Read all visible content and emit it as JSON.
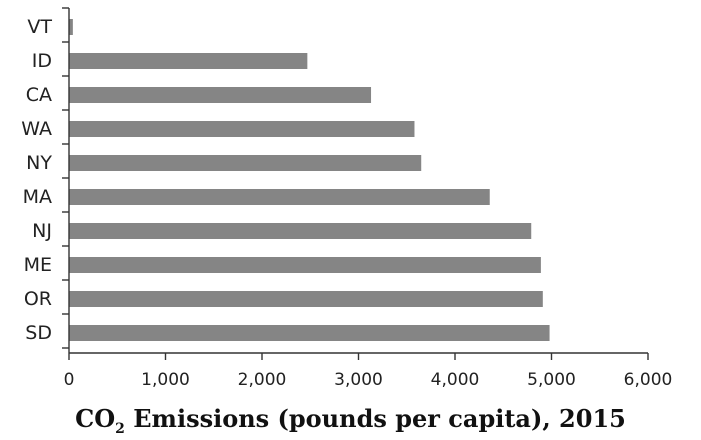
{
  "chart_data": {
    "type": "bar",
    "orientation": "horizontal",
    "categories": [
      "VT",
      "ID",
      "CA",
      "WA",
      "NY",
      "MA",
      "NJ",
      "ME",
      "OR",
      "SD"
    ],
    "values": [
      40,
      2470,
      3130,
      3580,
      3650,
      4360,
      4790,
      4890,
      4910,
      4980
    ],
    "xlim": [
      0,
      6000
    ],
    "xticks": [
      "0",
      "1,000",
      "2,000",
      "3,000",
      "4,000",
      "5,000",
      "6,000"
    ],
    "xlabel_prefix": "CO",
    "xlabel_subscript": "2",
    "xlabel_rest": " Emissions (pounds per capita), 2015",
    "bar_color": "#858585",
    "grid": false
  }
}
